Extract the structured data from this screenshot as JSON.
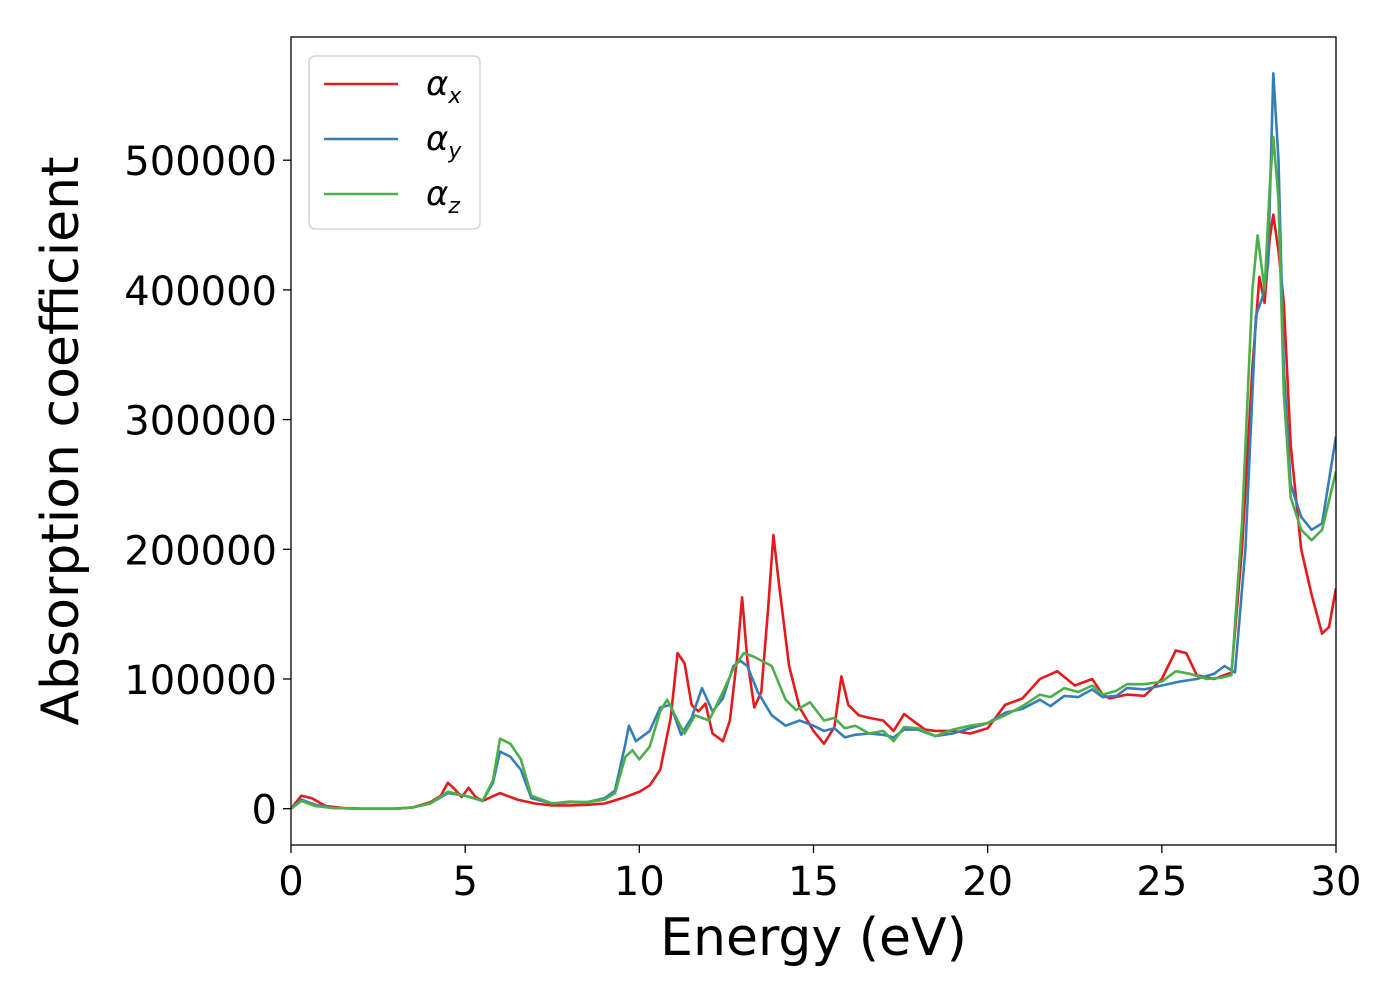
{
  "chart_data": {
    "type": "line",
    "title": "",
    "xlabel": "Energy (eV)",
    "ylabel": "Absorption coefficient",
    "xlim": [
      0,
      30
    ],
    "ylim": [
      -28000,
      595000
    ],
    "x_ticks": [
      0,
      5,
      10,
      15,
      20,
      25,
      30
    ],
    "y_ticks": [
      0,
      100000,
      200000,
      300000,
      400000,
      500000
    ],
    "grid": false,
    "legend_position": "top-left",
    "series": [
      {
        "name": "α",
        "subscript": "x",
        "color": "#e41a1c",
        "points": [
          [
            0,
            0
          ],
          [
            0.3,
            10000
          ],
          [
            0.6,
            8000
          ],
          [
            1,
            2000
          ],
          [
            1.5,
            500
          ],
          [
            2,
            0
          ],
          [
            3,
            0
          ],
          [
            3.5,
            1000
          ],
          [
            4,
            5000
          ],
          [
            4.3,
            10000
          ],
          [
            4.5,
            20000
          ],
          [
            4.7,
            15000
          ],
          [
            4.9,
            9000
          ],
          [
            5.1,
            16000
          ],
          [
            5.3,
            9000
          ],
          [
            5.5,
            6000
          ],
          [
            6,
            12000
          ],
          [
            6.5,
            7000
          ],
          [
            7,
            4000
          ],
          [
            7.5,
            2500
          ],
          [
            8,
            2500
          ],
          [
            8.5,
            3000
          ],
          [
            9,
            4000
          ],
          [
            9.5,
            8000
          ],
          [
            10,
            13000
          ],
          [
            10.3,
            18000
          ],
          [
            10.6,
            30000
          ],
          [
            10.9,
            70000
          ],
          [
            11.1,
            120000
          ],
          [
            11.3,
            112000
          ],
          [
            11.5,
            80000
          ],
          [
            11.7,
            75000
          ],
          [
            11.9,
            81000
          ],
          [
            12.1,
            58000
          ],
          [
            12.4,
            52000
          ],
          [
            12.6,
            68000
          ],
          [
            12.8,
            115000
          ],
          [
            12.95,
            163000
          ],
          [
            13.1,
            115000
          ],
          [
            13.3,
            78000
          ],
          [
            13.5,
            90000
          ],
          [
            13.7,
            155000
          ],
          [
            13.85,
            211000
          ],
          [
            14,
            175000
          ],
          [
            14.3,
            110000
          ],
          [
            14.6,
            78000
          ],
          [
            15,
            60000
          ],
          [
            15.3,
            50000
          ],
          [
            15.6,
            63000
          ],
          [
            15.8,
            102000
          ],
          [
            16,
            80000
          ],
          [
            16.3,
            72000
          ],
          [
            16.6,
            70000
          ],
          [
            17,
            68000
          ],
          [
            17.3,
            60000
          ],
          [
            17.6,
            73000
          ],
          [
            17.9,
            67000
          ],
          [
            18.2,
            61000
          ],
          [
            18.5,
            60000
          ],
          [
            19,
            60000
          ],
          [
            19.5,
            58000
          ],
          [
            20,
            62000
          ],
          [
            20.5,
            80000
          ],
          [
            21,
            85000
          ],
          [
            21.5,
            100000
          ],
          [
            22,
            106000
          ],
          [
            22.5,
            95000
          ],
          [
            23,
            100000
          ],
          [
            23.3,
            88000
          ],
          [
            23.5,
            85000
          ],
          [
            24,
            88000
          ],
          [
            24.5,
            87000
          ],
          [
            25,
            100000
          ],
          [
            25.4,
            122000
          ],
          [
            25.7,
            120000
          ],
          [
            26,
            103000
          ],
          [
            26.5,
            100000
          ],
          [
            27,
            105000
          ],
          [
            27.3,
            200000
          ],
          [
            27.6,
            340000
          ],
          [
            27.8,
            410000
          ],
          [
            27.95,
            390000
          ],
          [
            28.1,
            440000
          ],
          [
            28.2,
            458000
          ],
          [
            28.35,
            430000
          ],
          [
            28.5,
            390000
          ],
          [
            28.7,
            280000
          ],
          [
            29,
            200000
          ],
          [
            29.3,
            165000
          ],
          [
            29.6,
            135000
          ],
          [
            29.8,
            140000
          ],
          [
            30,
            170000
          ]
        ]
      },
      {
        "name": "α",
        "subscript": "y",
        "color": "#377eb8",
        "points": [
          [
            0,
            0
          ],
          [
            0.3,
            7000
          ],
          [
            0.7,
            3000
          ],
          [
            1.2,
            500
          ],
          [
            2,
            0
          ],
          [
            3,
            0
          ],
          [
            3.5,
            1000
          ],
          [
            4,
            4000
          ],
          [
            4.5,
            12000
          ],
          [
            5,
            10000
          ],
          [
            5.5,
            6000
          ],
          [
            5.8,
            20000
          ],
          [
            6,
            44000
          ],
          [
            6.3,
            40000
          ],
          [
            6.6,
            30000
          ],
          [
            6.9,
            8000
          ],
          [
            7.5,
            4000
          ],
          [
            8,
            5000
          ],
          [
            8.5,
            5000
          ],
          [
            9,
            8000
          ],
          [
            9.3,
            14000
          ],
          [
            9.6,
            50000
          ],
          [
            9.7,
            64000
          ],
          [
            9.9,
            52000
          ],
          [
            10.3,
            60000
          ],
          [
            10.6,
            78000
          ],
          [
            10.9,
            80000
          ],
          [
            11.2,
            57000
          ],
          [
            11.5,
            70000
          ],
          [
            11.8,
            93000
          ],
          [
            12.1,
            75000
          ],
          [
            12.4,
            85000
          ],
          [
            12.7,
            110000
          ],
          [
            12.9,
            114000
          ],
          [
            13.1,
            110000
          ],
          [
            13.4,
            90000
          ],
          [
            13.8,
            72000
          ],
          [
            14.2,
            64000
          ],
          [
            14.6,
            68000
          ],
          [
            15,
            64000
          ],
          [
            15.3,
            60000
          ],
          [
            15.6,
            62000
          ],
          [
            15.9,
            55000
          ],
          [
            16.2,
            57000
          ],
          [
            16.6,
            58000
          ],
          [
            17,
            57000
          ],
          [
            17.3,
            55000
          ],
          [
            17.6,
            61000
          ],
          [
            18,
            61000
          ],
          [
            18.5,
            56000
          ],
          [
            19,
            58000
          ],
          [
            19.5,
            62000
          ],
          [
            20,
            66000
          ],
          [
            20.5,
            74000
          ],
          [
            21,
            77000
          ],
          [
            21.5,
            84000
          ],
          [
            21.8,
            79000
          ],
          [
            22.2,
            87000
          ],
          [
            22.6,
            86000
          ],
          [
            23,
            92000
          ],
          [
            23.3,
            86000
          ],
          [
            23.7,
            87000
          ],
          [
            24,
            93000
          ],
          [
            24.5,
            92000
          ],
          [
            25,
            95000
          ],
          [
            25.5,
            98000
          ],
          [
            26,
            100000
          ],
          [
            26.5,
            104000
          ],
          [
            26.8,
            110000
          ],
          [
            27.1,
            105000
          ],
          [
            27.4,
            200000
          ],
          [
            27.7,
            380000
          ],
          [
            27.9,
            395000
          ],
          [
            28.05,
            420000
          ],
          [
            28.2,
            567000
          ],
          [
            28.35,
            500000
          ],
          [
            28.5,
            340000
          ],
          [
            28.7,
            250000
          ],
          [
            29,
            225000
          ],
          [
            29.3,
            215000
          ],
          [
            29.6,
            220000
          ],
          [
            30,
            287000
          ]
        ]
      },
      {
        "name": "α",
        "subscript": "z",
        "color": "#4daf4a",
        "points": [
          [
            0,
            0
          ],
          [
            0.3,
            6000
          ],
          [
            0.7,
            2000
          ],
          [
            1.2,
            500
          ],
          [
            2,
            0
          ],
          [
            3,
            0
          ],
          [
            3.5,
            1000
          ],
          [
            4,
            4000
          ],
          [
            4.5,
            13000
          ],
          [
            5,
            10000
          ],
          [
            5.5,
            6000
          ],
          [
            5.8,
            22000
          ],
          [
            6,
            54000
          ],
          [
            6.3,
            50000
          ],
          [
            6.6,
            38000
          ],
          [
            6.9,
            10000
          ],
          [
            7.5,
            4000
          ],
          [
            8,
            5500
          ],
          [
            8.5,
            5000
          ],
          [
            9,
            7000
          ],
          [
            9.3,
            12000
          ],
          [
            9.6,
            40000
          ],
          [
            9.8,
            45000
          ],
          [
            10,
            38000
          ],
          [
            10.3,
            48000
          ],
          [
            10.6,
            75000
          ],
          [
            10.8,
            84000
          ],
          [
            11.1,
            68000
          ],
          [
            11.3,
            58000
          ],
          [
            11.6,
            72000
          ],
          [
            12,
            68000
          ],
          [
            12.4,
            90000
          ],
          [
            12.7,
            108000
          ],
          [
            13,
            120000
          ],
          [
            13.3,
            117000
          ],
          [
            13.8,
            110000
          ],
          [
            14.2,
            84000
          ],
          [
            14.5,
            76000
          ],
          [
            14.9,
            82000
          ],
          [
            15.3,
            68000
          ],
          [
            15.6,
            70000
          ],
          [
            15.9,
            62000
          ],
          [
            16.2,
            64000
          ],
          [
            16.6,
            58000
          ],
          [
            17,
            60000
          ],
          [
            17.3,
            52000
          ],
          [
            17.6,
            63000
          ],
          [
            18,
            62000
          ],
          [
            18.5,
            56000
          ],
          [
            19,
            61000
          ],
          [
            19.5,
            64000
          ],
          [
            20,
            66000
          ],
          [
            20.5,
            72000
          ],
          [
            21,
            79000
          ],
          [
            21.5,
            88000
          ],
          [
            21.8,
            86000
          ],
          [
            22.2,
            93000
          ],
          [
            22.6,
            90000
          ],
          [
            23,
            95000
          ],
          [
            23.3,
            88000
          ],
          [
            23.7,
            91000
          ],
          [
            24,
            96000
          ],
          [
            24.5,
            96000
          ],
          [
            25,
            98000
          ],
          [
            25.4,
            106000
          ],
          [
            25.8,
            104000
          ],
          [
            26.3,
            100000
          ],
          [
            26.7,
            101000
          ],
          [
            27,
            103000
          ],
          [
            27.3,
            220000
          ],
          [
            27.6,
            400000
          ],
          [
            27.75,
            442000
          ],
          [
            27.95,
            400000
          ],
          [
            28.1,
            480000
          ],
          [
            28.2,
            518000
          ],
          [
            28.35,
            470000
          ],
          [
            28.5,
            320000
          ],
          [
            28.7,
            240000
          ],
          [
            29,
            215000
          ],
          [
            29.3,
            207000
          ],
          [
            29.6,
            215000
          ],
          [
            30,
            260000
          ]
        ]
      }
    ]
  }
}
